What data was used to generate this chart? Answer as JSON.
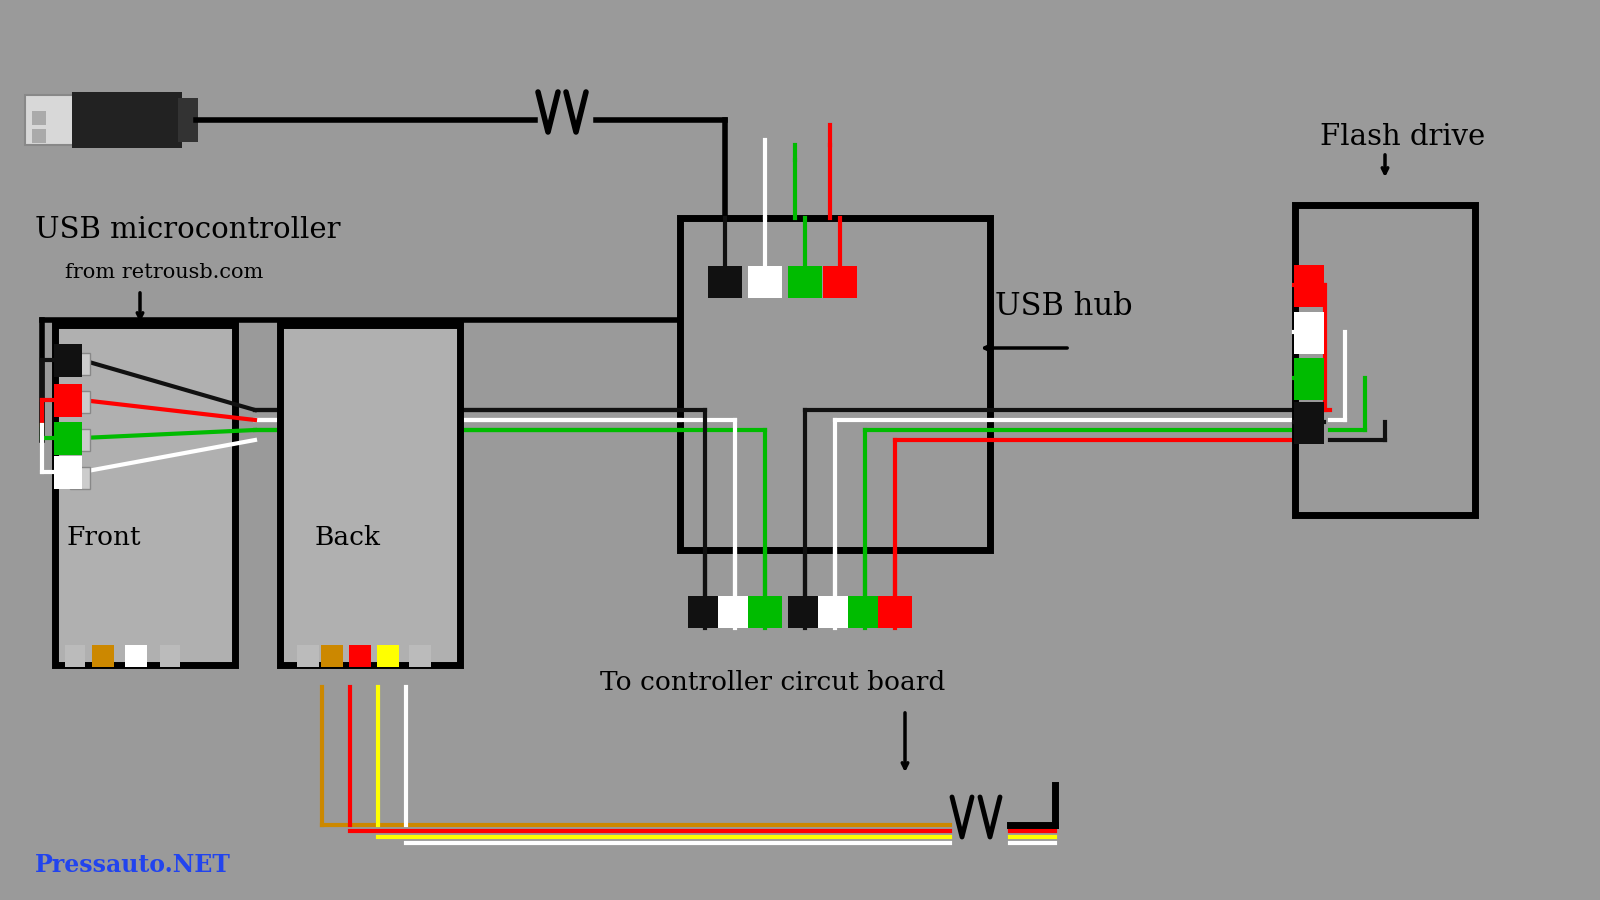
{
  "bg_color": "#9a9a9a",
  "label_usb_micro": "USB microcontroller",
  "label_usb_micro_sub": "from retrousb.com",
  "label_usb_hub": "USB hub",
  "label_flash_drive": "Flash drive",
  "label_front": "Front",
  "label_back": "Back",
  "label_circuit": "To controller circut board",
  "label_pressauto": "Pressauto.NET",
  "wire_colors": [
    "#ff0000",
    "#00bb00",
    "#ffffff",
    "#000000"
  ],
  "flash_pin_colors": [
    "#ff0000",
    "#ffffff",
    "#00bb00",
    "#111111"
  ],
  "front_pin_colors": [
    "#ff0000",
    "#00bb00",
    "#ffffff",
    "#111111"
  ],
  "bottom_wire_colors": [
    "#cc8800",
    "#ff0000",
    "#ffff00",
    "#ffffff"
  ],
  "hub_top_pin_colors": [
    "#111111",
    "#ffffff",
    "#00bb00",
    "#ff0000"
  ],
  "hub_bot_left_pin_colors": [
    "#111111",
    "#ffffff",
    "#00bb00"
  ],
  "hub_bot_right_pin_colors": [
    "#111111",
    "#ffffff",
    "#00bb00",
    "#ff0000"
  ]
}
